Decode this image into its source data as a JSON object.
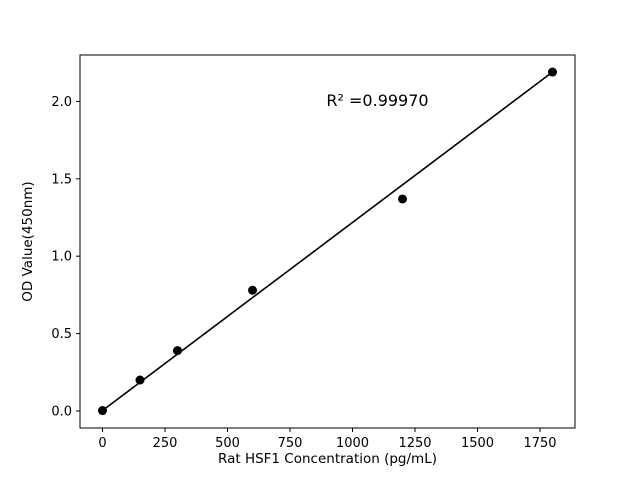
{
  "chart_data": {
    "type": "scatter",
    "title": "",
    "xlabel": "Rat HSF1 Concentration (pg/mL)",
    "ylabel": "OD Value(450nm)",
    "x": [
      0,
      150,
      300,
      600,
      1200,
      1800
    ],
    "y": [
      0.003,
      0.2,
      0.39,
      0.78,
      1.37,
      2.19
    ],
    "fit_line": {
      "x1": 0,
      "y1": 0.003,
      "x2": 1800,
      "y2": 2.19
    },
    "annotation": {
      "text": "R² =0.99970",
      "x": 1100,
      "y": 1.97
    },
    "xlim": [
      -90,
      1890
    ],
    "ylim": [
      -0.11,
      2.3
    ],
    "xticks": [
      0,
      250,
      500,
      750,
      1000,
      1250,
      1500,
      1750
    ],
    "yticks": [
      0.0,
      0.5,
      1.0,
      1.5,
      2.0
    ],
    "grid": false,
    "legend": null,
    "marker_color": "#000000",
    "line_color": "#000000",
    "background": "#ffffff"
  }
}
